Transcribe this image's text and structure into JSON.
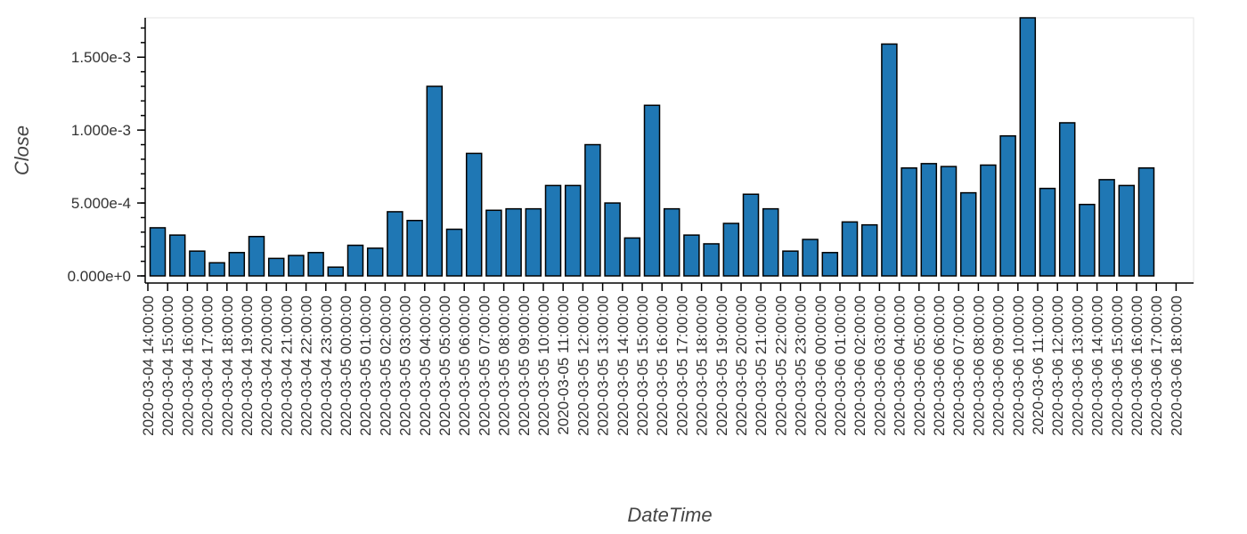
{
  "chart_data": {
    "type": "bar",
    "xlabel": "DateTime",
    "ylabel": "Close",
    "ylim": [
      0,
      0.00177
    ],
    "yticks": [
      0,
      0.0005,
      0.001,
      0.0015
    ],
    "ytick_labels": [
      "0.000e+0",
      "5.000e-4",
      "1.000e-3",
      "1.500e-3"
    ],
    "categories": [
      "2020-03-04 14:00:00",
      "2020-03-04 15:00:00",
      "2020-03-04 16:00:00",
      "2020-03-04 17:00:00",
      "2020-03-04 18:00:00",
      "2020-03-04 19:00:00",
      "2020-03-04 20:00:00",
      "2020-03-04 21:00:00",
      "2020-03-04 22:00:00",
      "2020-03-04 23:00:00",
      "2020-03-05 00:00:00",
      "2020-03-05 01:00:00",
      "2020-03-05 02:00:00",
      "2020-03-05 03:00:00",
      "2020-03-05 04:00:00",
      "2020-03-05 05:00:00",
      "2020-03-05 06:00:00",
      "2020-03-05 07:00:00",
      "2020-03-05 08:00:00",
      "2020-03-05 09:00:00",
      "2020-03-05 10:00:00",
      "2020-03-05 11:00:00",
      "2020-03-05 12:00:00",
      "2020-03-05 13:00:00",
      "2020-03-05 14:00:00",
      "2020-03-05 15:00:00",
      "2020-03-05 16:00:00",
      "2020-03-05 17:00:00",
      "2020-03-05 18:00:00",
      "2020-03-05 19:00:00",
      "2020-03-05 20:00:00",
      "2020-03-05 21:00:00",
      "2020-03-05 22:00:00",
      "2020-03-05 23:00:00",
      "2020-03-06 00:00:00",
      "2020-03-06 01:00:00",
      "2020-03-06 02:00:00",
      "2020-03-06 03:00:00",
      "2020-03-06 04:00:00",
      "2020-03-06 05:00:00",
      "2020-03-06 06:00:00",
      "2020-03-06 07:00:00",
      "2020-03-06 08:00:00",
      "2020-03-06 09:00:00",
      "2020-03-06 10:00:00",
      "2020-03-06 11:00:00",
      "2020-03-06 12:00:00",
      "2020-03-06 13:00:00",
      "2020-03-06 14:00:00",
      "2020-03-06 15:00:00",
      "2020-03-06 16:00:00",
      "2020-03-06 17:00:00",
      "2020-03-06 18:00:00"
    ],
    "values": [
      0.00033,
      0.00028,
      0.00017,
      9e-05,
      0.00016,
      0.00027,
      0.00012,
      0.00014,
      0.00016,
      6e-05,
      0.00021,
      0.00019,
      0.00044,
      0.00038,
      0.0013,
      0.00032,
      0.00084,
      0.00045,
      0.00046,
      0.00046,
      0.00062,
      0.00062,
      0.0009,
      0.0005,
      0.00026,
      0.00117,
      0.00046,
      0.00028,
      0.00022,
      0.00036,
      0.00056,
      0.00046,
      0.00017,
      0.00025,
      0.00016,
      0.00037,
      0.00035,
      0.00159,
      0.00074,
      0.00077,
      0.00075,
      0.00057,
      0.00076,
      0.00096,
      0.00177,
      0.0006,
      0.00105,
      0.00049,
      0.00066,
      0.00062,
      0.00074,
      null,
      null
    ],
    "grid": false,
    "legend": "none"
  }
}
